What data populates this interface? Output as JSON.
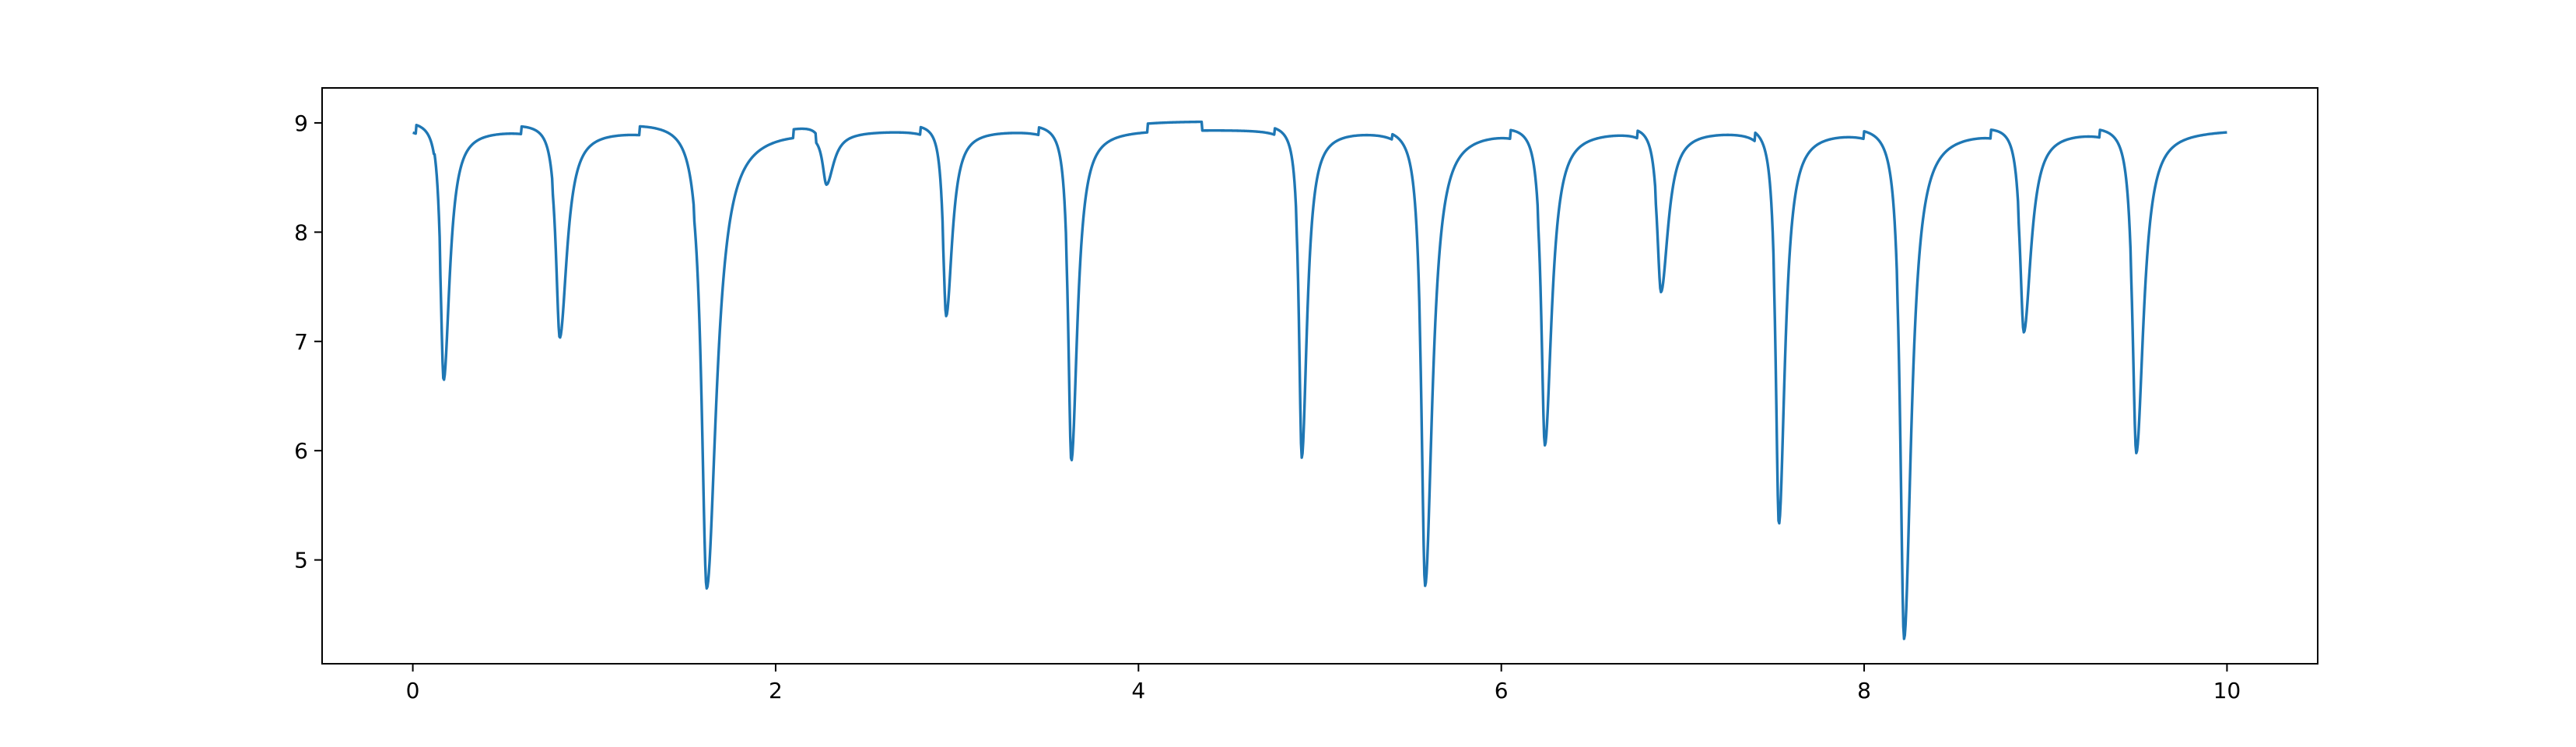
{
  "chart_data": {
    "type": "line",
    "title": "",
    "xlabel": "",
    "ylabel": "",
    "xlim": [
      -0.5,
      10.5
    ],
    "ylim": [
      4.05,
      9.32
    ],
    "grid": false,
    "x_ticks": [
      0,
      2,
      4,
      6,
      8,
      10
    ],
    "x_tick_labels": [
      "0",
      "2",
      "4",
      "6",
      "8",
      "10"
    ],
    "y_ticks": [
      5,
      6,
      7,
      8,
      9
    ],
    "y_tick_labels": [
      "5",
      "6",
      "7",
      "8",
      "9"
    ],
    "baseline": 8.95,
    "series": [
      {
        "color": "#1f77b4",
        "x_start": 0,
        "x_end": 10,
        "dips": [
          {
            "x": 0.17,
            "y": 6.65,
            "w": 0.025
          },
          {
            "x": 0.81,
            "y": 7.05,
            "w": 0.03
          },
          {
            "x": 1.62,
            "y": 4.75,
            "w": 0.04
          },
          {
            "x": 2.28,
            "y": 8.48,
            "w": 0.03
          },
          {
            "x": 2.94,
            "y": 7.25,
            "w": 0.025
          },
          {
            "x": 3.63,
            "y": 5.92,
            "w": 0.025
          },
          {
            "x": 4.9,
            "y": 5.95,
            "w": 0.022
          },
          {
            "x": 5.58,
            "y": 4.78,
            "w": 0.03
          },
          {
            "x": 6.24,
            "y": 6.08,
            "w": 0.028
          },
          {
            "x": 6.88,
            "y": 7.48,
            "w": 0.03
          },
          {
            "x": 7.53,
            "y": 5.35,
            "w": 0.025
          },
          {
            "x": 8.22,
            "y": 4.3,
            "w": 0.03
          },
          {
            "x": 8.88,
            "y": 7.12,
            "w": 0.03
          },
          {
            "x": 9.5,
            "y": 6.0,
            "w": 0.03
          }
        ],
        "plateaus": [
          {
            "x0": 0.02,
            "x1": 0.12,
            "y": 9.03
          },
          {
            "x0": 0.12,
            "x1": 0.15,
            "y": 9.07
          },
          {
            "x0": 0.6,
            "x1": 0.77,
            "y": 9.02
          },
          {
            "x0": 1.25,
            "x1": 1.55,
            "y": 9.03
          },
          {
            "x0": 2.1,
            "x1": 2.22,
            "y": 9.03
          },
          {
            "x0": 2.8,
            "x1": 2.92,
            "y": 9.02
          },
          {
            "x0": 3.45,
            "x1": 3.6,
            "y": 9.02
          },
          {
            "x0": 4.05,
            "x1": 4.35,
            "y": 9.03
          },
          {
            "x0": 4.75,
            "x1": 4.87,
            "y": 9.01
          },
          {
            "x0": 5.4,
            "x1": 5.55,
            "y": 9.0
          },
          {
            "x0": 6.05,
            "x1": 6.2,
            "y": 9.03
          },
          {
            "x0": 6.75,
            "x1": 6.85,
            "y": 9.02
          },
          {
            "x0": 7.4,
            "x1": 7.5,
            "y": 9.03
          },
          {
            "x0": 8.0,
            "x1": 8.18,
            "y": 9.02
          },
          {
            "x0": 8.7,
            "x1": 8.85,
            "y": 9.03
          },
          {
            "x0": 9.3,
            "x1": 9.47,
            "y": 9.02
          }
        ]
      }
    ]
  }
}
